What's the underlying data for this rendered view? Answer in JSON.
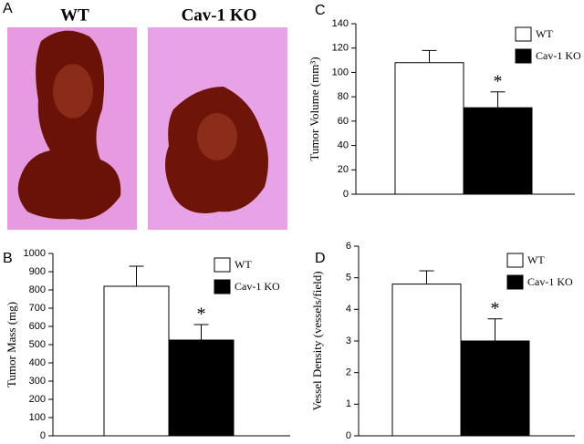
{
  "photo": {
    "panel": "A",
    "labels": [
      "WT",
      "Cav-1 KO"
    ]
  },
  "chart_data": [
    {
      "type": "bar",
      "panel": "B",
      "y_label": "Tumor Mass (mg)",
      "ylim": [
        0,
        1000
      ],
      "yticks": [
        0,
        100,
        200,
        300,
        400,
        500,
        600,
        700,
        800,
        900,
        1000
      ],
      "series": [
        {
          "name": "WT",
          "color": "#ffffff",
          "values": [
            820
          ],
          "errors": [
            110
          ]
        },
        {
          "name": "Cav-1 KO",
          "color": "#000000",
          "values": [
            525
          ],
          "errors": [
            85
          ]
        }
      ],
      "annotation": "*",
      "legend": "upper right"
    },
    {
      "type": "bar",
      "panel": "C",
      "y_label": "Tumor Volume (mm³)",
      "ylim": [
        0,
        140
      ],
      "yticks": [
        0,
        20,
        40,
        60,
        80,
        100,
        120,
        140
      ],
      "series": [
        {
          "name": "WT",
          "color": "#ffffff",
          "values": [
            108
          ],
          "errors": [
            10
          ]
        },
        {
          "name": "Cav-1 KO",
          "color": "#000000",
          "values": [
            71
          ],
          "errors": [
            13
          ]
        }
      ],
      "annotation": "*",
      "legend": "upper right"
    },
    {
      "type": "bar",
      "panel": "D",
      "y_label": "Vessel Density (vessels/field)",
      "ylim": [
        0,
        6
      ],
      "yticks": [
        0,
        1,
        2,
        3,
        4,
        5,
        6
      ],
      "series": [
        {
          "name": "WT",
          "color": "#ffffff",
          "values": [
            4.8
          ],
          "errors": [
            0.42
          ]
        },
        {
          "name": "Cav-1 KO",
          "color": "#000000",
          "values": [
            3.0
          ],
          "errors": [
            0.7
          ]
        }
      ],
      "annotation": "*",
      "legend": "upper right"
    }
  ]
}
